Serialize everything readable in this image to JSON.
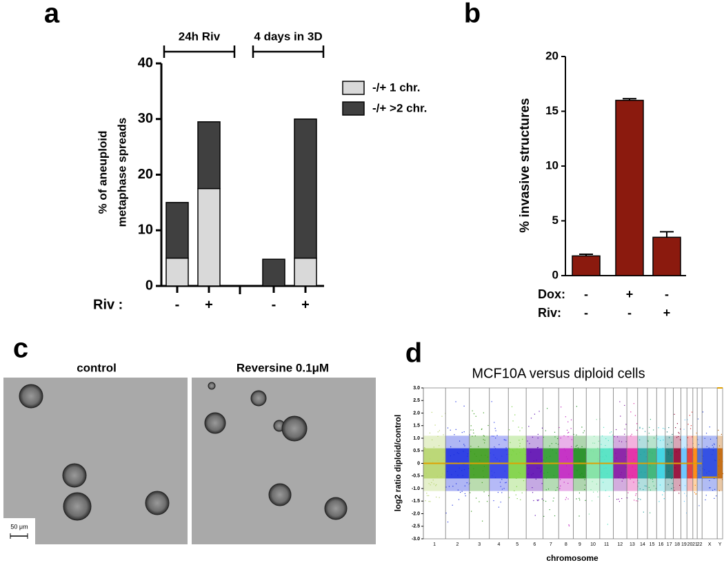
{
  "chart_data": [
    {
      "type": "stacked_bar",
      "panel": "a",
      "groups": [
        "24h Riv",
        "4 days in 3D"
      ],
      "categories": [
        "-",
        "+",
        "-",
        "+"
      ],
      "x_row_label": "Riv :",
      "ylabel": [
        "% of aneuploid",
        "metaphase spreads"
      ],
      "ylim": [
        0,
        40
      ],
      "yticks": [
        0,
        10,
        20,
        30,
        40
      ],
      "series": [
        {
          "name": "-/+ 1 chr.",
          "color": "#d9d9d9",
          "values": [
            5,
            17.5,
            0,
            5
          ]
        },
        {
          "name": "-/+ >2 chr.",
          "color": "#404040",
          "values": [
            10,
            12,
            4.8,
            25
          ]
        }
      ]
    },
    {
      "type": "bar",
      "panel": "b",
      "ylabel": "% invasive structures",
      "ylim": [
        0,
        20
      ],
      "yticks": [
        0,
        5,
        10,
        15,
        20
      ],
      "color": "#8b1a0e",
      "values": [
        1.8,
        16,
        3.5
      ],
      "errors": [
        0.15,
        0.15,
        0.5
      ],
      "rows": [
        {
          "label": "Dox:",
          "values": [
            "-",
            "+",
            "-"
          ]
        },
        {
          "label": "Riv:",
          "values": [
            "-",
            "-",
            "+"
          ]
        }
      ]
    },
    {
      "type": "genome_scatter",
      "panel": "d",
      "title": "MCF10A versus diploid cells",
      "ylabel": "log2 ratio diploid/control",
      "xlabel": "chromosome",
      "ylim": [
        -3,
        3
      ],
      "yticks": [
        {
          "value": 3,
          "label": "3.0"
        },
        {
          "value": 2.5,
          "label": "2.5"
        },
        {
          "value": 2,
          "label": "2.0"
        },
        {
          "value": 1.5,
          "label": "1.5"
        },
        {
          "value": 1,
          "label": "1.0"
        },
        {
          "value": 0.5,
          "label": "0.5"
        },
        0,
        {
          "value": -0.5,
          "label": "-0.5"
        },
        {
          "value": -1,
          "label": "-1.0"
        },
        {
          "value": -1.5,
          "label": "-1.5"
        },
        {
          "value": -2,
          "label": "-2.0"
        },
        {
          "value": -2.5,
          "label": "-2.5"
        },
        {
          "value": -3,
          "label": "-3.0"
        }
      ],
      "categories": [
        "1",
        "2",
        "3",
        "4",
        "5",
        "6",
        "7",
        "8",
        "9",
        "10",
        "11",
        "12",
        "13",
        "14",
        "15",
        "16",
        "17",
        "18",
        "19",
        "20",
        "21",
        "22",
        "X",
        "Y"
      ],
      "chromosome_colors": [
        "#b5d36a",
        "#1a2ee0",
        "#3a9a1a",
        "#2a3ae8",
        "#7ad040",
        "#5a0ab0",
        "#2a9a2a",
        "#c020c0",
        "#1a8a1a",
        "#7adf9f",
        "#4ae0c0",
        "#8010a0",
        "#e020a0",
        "#20a0a0",
        "#30b070",
        "#30d0e0",
        "#107070",
        "#900030",
        "#60c0ff",
        "#e03030",
        "#ff8000",
        "#4060d0",
        "#2040e0",
        "#c06000"
      ],
      "color": "#e0a000",
      "values": [
        0,
        0,
        0,
        0,
        0,
        0,
        0,
        0,
        0,
        0,
        0,
        0,
        0,
        0,
        0,
        0,
        0,
        0,
        0,
        0,
        0,
        0,
        -0.55,
        3
      ]
    }
  ],
  "panel_c": {
    "panel": "c",
    "images": [
      "control",
      "Reversine 0.1μM"
    ],
    "scale_bar": "50 μm"
  }
}
